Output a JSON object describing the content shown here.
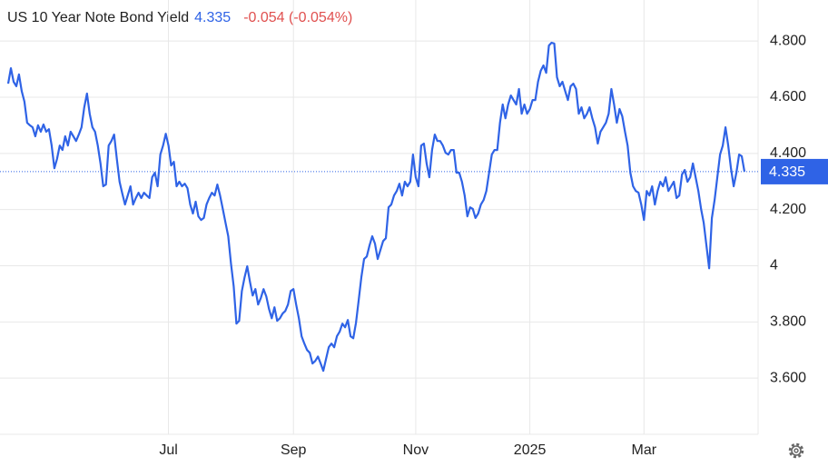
{
  "chart_data": {
    "type": "line",
    "title": "US 10 Year Note Bond Yield",
    "last_value": 4.335,
    "change": "-0.054 (-0.054%)",
    "color": "#2f63e6",
    "grid": true,
    "xlim": [
      -3,
      276
    ],
    "ylim": [
      3.4,
      4.946
    ],
    "xticks": [
      {
        "value": 59,
        "label": "Jul"
      },
      {
        "value": 105,
        "label": "Sep"
      },
      {
        "value": 150,
        "label": "Nov"
      },
      {
        "value": 192,
        "label": "2025"
      },
      {
        "value": 234,
        "label": "Mar"
      }
    ],
    "yticks": [
      {
        "value": 3.6,
        "label": "3.600"
      },
      {
        "value": 3.8,
        "label": "3.800"
      },
      4,
      {
        "value": 4.2,
        "label": "4.200"
      },
      {
        "value": 4.4,
        "label": "4.400"
      },
      {
        "value": 4.6,
        "label": "4.600"
      },
      {
        "value": 4.8,
        "label": "4.800"
      }
    ],
    "x": [
      0,
      1,
      2,
      3,
      4,
      5,
      6,
      7,
      8,
      9,
      10,
      11,
      12,
      13,
      14,
      15,
      16,
      17,
      18,
      19,
      20,
      21,
      22,
      23,
      24,
      25,
      26,
      27,
      28,
      29,
      30,
      31,
      32,
      33,
      34,
      35,
      36,
      37,
      38,
      39,
      40,
      41,
      42,
      43,
      44,
      45,
      46,
      47,
      48,
      49,
      50,
      51,
      52,
      53,
      54,
      55,
      56,
      57,
      58,
      59,
      60,
      61,
      62,
      63,
      64,
      65,
      66,
      67,
      68,
      69,
      70,
      71,
      72,
      73,
      74,
      75,
      76,
      77,
      78,
      79,
      80,
      81,
      82,
      83,
      84,
      85,
      86,
      87,
      88,
      89,
      90,
      91,
      92,
      93,
      94,
      95,
      96,
      97,
      98,
      99,
      100,
      101,
      102,
      103,
      104,
      105,
      106,
      107,
      108,
      109,
      110,
      111,
      112,
      113,
      114,
      115,
      116,
      117,
      118,
      119,
      120,
      121,
      122,
      123,
      124,
      125,
      126,
      127,
      128,
      129,
      130,
      131,
      132,
      133,
      134,
      135,
      136,
      137,
      138,
      139,
      140,
      141,
      142,
      143,
      144,
      145,
      146,
      147,
      148,
      149,
      150,
      151,
      152,
      153,
      154,
      155,
      156,
      157,
      158,
      159,
      160,
      161,
      162,
      163,
      164,
      165,
      166,
      167,
      168,
      169,
      170,
      171,
      172,
      173,
      174,
      175,
      176,
      177,
      178,
      179,
      180,
      181,
      182,
      183,
      184,
      185,
      186,
      187,
      188,
      189,
      190,
      191,
      192,
      193,
      194,
      195,
      196,
      197,
      198,
      199,
      200,
      201,
      202,
      203,
      204,
      205,
      206,
      207,
      208,
      209,
      210,
      211,
      212,
      213,
      214,
      215,
      216,
      217,
      218,
      219,
      220,
      221,
      222,
      223,
      224,
      225,
      226,
      227,
      228,
      229,
      230,
      231,
      232,
      233,
      234,
      235,
      236,
      237,
      238,
      239,
      240,
      241,
      242,
      243,
      244,
      245,
      246,
      247,
      248,
      249,
      250,
      251,
      252,
      253,
      254,
      255,
      256,
      257,
      258,
      259,
      260,
      261,
      262,
      263,
      264,
      265,
      266,
      267,
      268,
      269,
      270,
      271
    ],
    "values": [
      4.648,
      4.703,
      4.655,
      4.639,
      4.681,
      4.622,
      4.584,
      4.509,
      4.5,
      4.493,
      4.461,
      4.5,
      4.477,
      4.503,
      4.477,
      4.486,
      4.428,
      4.347,
      4.38,
      4.428,
      4.412,
      4.461,
      4.428,
      4.477,
      4.461,
      4.444,
      4.467,
      4.493,
      4.564,
      4.613,
      4.541,
      4.493,
      4.477,
      4.428,
      4.364,
      4.283,
      4.289,
      4.428,
      4.444,
      4.467,
      4.38,
      4.299,
      4.257,
      4.218,
      4.25,
      4.283,
      4.218,
      4.241,
      4.26,
      4.241,
      4.26,
      4.25,
      4.241,
      4.315,
      4.331,
      4.283,
      4.396,
      4.428,
      4.47,
      4.428,
      4.357,
      4.37,
      4.283,
      4.299,
      4.283,
      4.292,
      4.276,
      4.218,
      4.186,
      4.228,
      4.176,
      4.163,
      4.17,
      4.218,
      4.241,
      4.26,
      4.25,
      4.289,
      4.25,
      4.202,
      4.153,
      4.105,
      4.008,
      3.927,
      3.794,
      3.804,
      3.91,
      3.959,
      3.998,
      3.943,
      3.894,
      3.917,
      3.862,
      3.885,
      3.917,
      3.891,
      3.846,
      3.813,
      3.852,
      3.804,
      3.813,
      3.83,
      3.839,
      3.862,
      3.91,
      3.917,
      3.862,
      3.813,
      3.749,
      3.723,
      3.7,
      3.69,
      3.652,
      3.661,
      3.677,
      3.652,
      3.626,
      3.668,
      3.71,
      3.723,
      3.71,
      3.749,
      3.765,
      3.794,
      3.781,
      3.807,
      3.749,
      3.742,
      3.797,
      3.878,
      3.959,
      4.024,
      4.033,
      4.072,
      4.105,
      4.079,
      4.024,
      4.056,
      4.088,
      4.098,
      4.208,
      4.218,
      4.25,
      4.266,
      4.292,
      4.25,
      4.299,
      4.283,
      4.299,
      4.396,
      4.315,
      4.283,
      4.428,
      4.435,
      4.364,
      4.315,
      4.412,
      4.467,
      4.444,
      4.444,
      4.428,
      4.402,
      4.396,
      4.412,
      4.412,
      4.331,
      4.331,
      4.299,
      4.25,
      4.176,
      4.208,
      4.202,
      4.17,
      4.186,
      4.218,
      4.234,
      4.266,
      4.331,
      4.396,
      4.412,
      4.412,
      4.509,
      4.574,
      4.525,
      4.574,
      4.606,
      4.59,
      4.574,
      4.629,
      4.541,
      4.574,
      4.541,
      4.558,
      4.59,
      4.59,
      4.655,
      4.694,
      4.713,
      4.687,
      4.784,
      4.794,
      4.791,
      4.671,
      4.639,
      4.655,
      4.622,
      4.59,
      4.639,
      4.648,
      4.629,
      4.541,
      4.564,
      4.525,
      4.541,
      4.564,
      4.525,
      4.493,
      4.435,
      4.477,
      4.493,
      4.509,
      4.541,
      4.629,
      4.574,
      4.509,
      4.558,
      4.532,
      4.477,
      4.428,
      4.331,
      4.283,
      4.266,
      4.26,
      4.218,
      4.163,
      4.266,
      4.25,
      4.283,
      4.218,
      4.266,
      4.299,
      4.283,
      4.315,
      4.266,
      4.283,
      4.299,
      4.241,
      4.25,
      4.325,
      4.341,
      4.299,
      4.315,
      4.364,
      4.315,
      4.266,
      4.202,
      4.153,
      4.072,
      3.991,
      4.17,
      4.234,
      4.315,
      4.396,
      4.428,
      4.493,
      4.428,
      4.347,
      4.283,
      4.331,
      4.396,
      4.39,
      4.335
    ]
  }
}
